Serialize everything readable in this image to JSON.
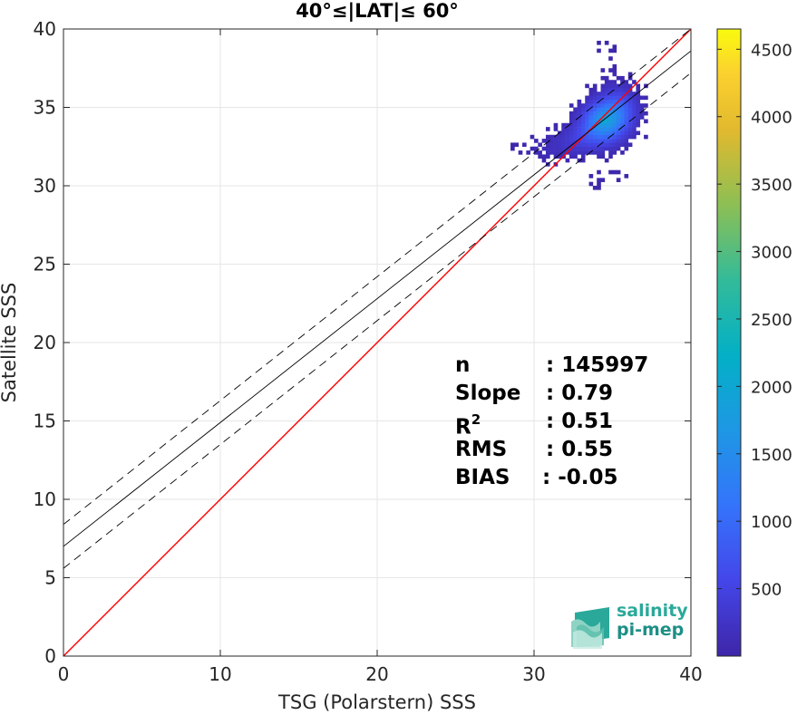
{
  "chart_data": {
    "type": "heatmap",
    "title": "40°≤|LAT|≤ 60°",
    "xlabel": "TSG (Polarstern) SSS",
    "ylabel": "Satellite SSS",
    "xlim": [
      0,
      40
    ],
    "ylim": [
      0,
      40
    ],
    "x_ticks": [
      0,
      10,
      20,
      30,
      40
    ],
    "y_ticks": [
      0,
      5,
      10,
      15,
      20,
      25,
      30,
      35,
      40
    ],
    "grid": true,
    "colorbar": {
      "colormap": "parula",
      "range": [
        0,
        4650
      ],
      "ticks": [
        500,
        1000,
        1500,
        2000,
        2500,
        3000,
        3500,
        4000,
        4500
      ]
    },
    "reference_lines": [
      {
        "name": "1:1 line",
        "color": "#ff0000",
        "intercept": 0,
        "slope": 1
      },
      {
        "name": "regression fit",
        "color": "#000000",
        "style": "solid",
        "intercept": 7.0,
        "slope": 0.79
      },
      {
        "name": "upper bound",
        "color": "#000000",
        "style": "dashed",
        "intercept": 8.4,
        "slope": 0.79
      },
      {
        "name": "lower bound",
        "color": "#000000",
        "style": "dashed",
        "intercept": 5.6,
        "slope": 0.79
      }
    ],
    "density_clusters": [
      {
        "x": 35.3,
        "y": 34.8,
        "spread_x": 0.8,
        "spread_y": 0.9,
        "weight": 700
      },
      {
        "x": 34.3,
        "y": 34.0,
        "spread_x": 0.9,
        "spread_y": 0.8,
        "weight": 1500
      },
      {
        "x": 33.2,
        "y": 33.0,
        "spread_x": 1.2,
        "spread_y": 0.6,
        "weight": 400
      },
      {
        "x": 31.5,
        "y": 32.2,
        "spread_x": 1.6,
        "spread_y": 0.5,
        "weight": 150
      },
      {
        "x": 34.5,
        "y": 37.5,
        "spread_x": 0.5,
        "spread_y": 1.5,
        "weight": 60
      },
      {
        "x": 34.5,
        "y": 30.3,
        "spread_x": 1.0,
        "spread_y": 0.5,
        "weight": 60
      }
    ],
    "peak_cell": {
      "x": 34.3,
      "y": 34.0,
      "value": 2000
    },
    "stats": [
      {
        "name": "n",
        "sup": "",
        "value": ": 145997"
      },
      {
        "name": "Slope",
        "sup": "",
        "value": ": 0.79"
      },
      {
        "name": "R",
        "sup": "2",
        "value": ": 0.51"
      },
      {
        "name": "RMS",
        "sup": "",
        "value": ": 0.55"
      },
      {
        "name": "BIAS",
        "sup": "",
        "value": ": -0.05"
      }
    ]
  },
  "logo": {
    "line1": "salinity",
    "line2": "pi-mep"
  }
}
